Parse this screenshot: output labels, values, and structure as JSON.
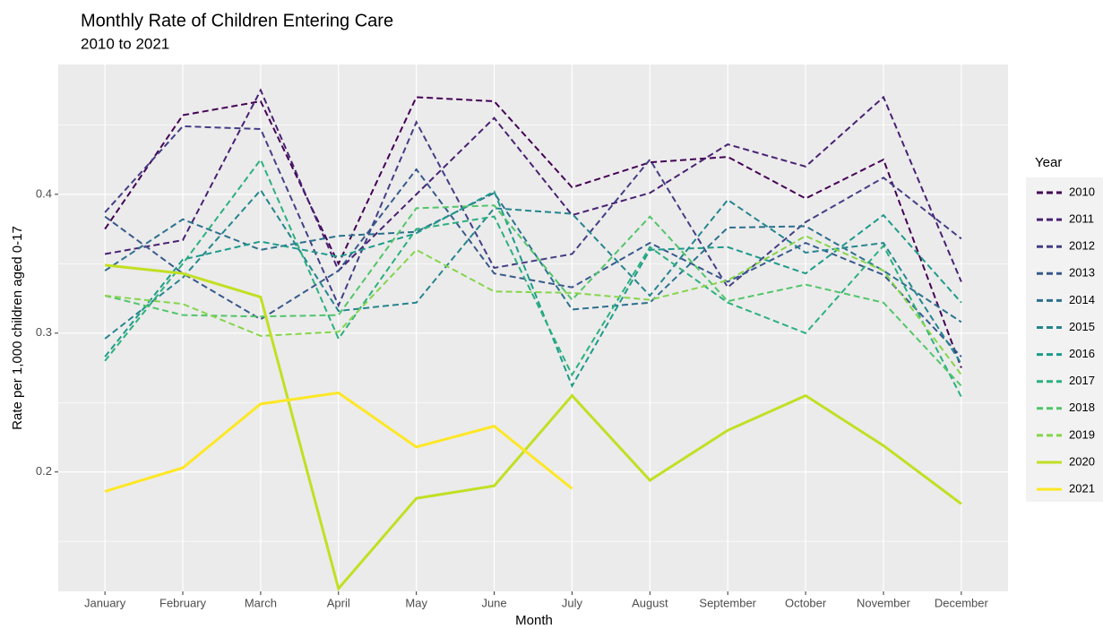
{
  "chart_data": {
    "type": "line",
    "title": "Monthly Rate of Children Entering Care",
    "subtitle": "2010 to 2021",
    "x_label": "Month",
    "y_label": "Rate per 1,000 children aged 0-17",
    "legend_title": "Year",
    "legend_position": "right",
    "grid": true,
    "categories": [
      "January",
      "February",
      "March",
      "April",
      "May",
      "June",
      "July",
      "August",
      "September",
      "October",
      "November",
      "December"
    ],
    "ylim": [
      0.114,
      0.4935
    ],
    "yticks": [
      0.2,
      0.3,
      0.4
    ],
    "series": [
      {
        "name": "2010",
        "color": "#440154",
        "linetype": "dashed",
        "values": [
          0.375,
          0.457,
          0.467,
          0.35,
          0.47,
          0.467,
          0.405,
          0.423,
          0.427,
          0.397,
          0.425,
          0.275
        ]
      },
      {
        "name": "2011",
        "color": "#482173",
        "linetype": "dashed",
        "values": [
          0.357,
          0.367,
          0.475,
          0.345,
          0.4,
          0.455,
          0.385,
          0.401,
          0.436,
          0.42,
          0.47,
          0.337
        ]
      },
      {
        "name": "2012",
        "color": "#433E85",
        "linetype": "dashed",
        "values": [
          0.387,
          0.449,
          0.447,
          0.32,
          0.452,
          0.347,
          0.357,
          0.425,
          0.333,
          0.38,
          0.412,
          0.368
        ]
      },
      {
        "name": "2013",
        "color": "#38598C",
        "linetype": "dashed",
        "values": [
          0.384,
          0.343,
          0.31,
          0.345,
          0.418,
          0.343,
          0.333,
          0.365,
          0.337,
          0.365,
          0.342,
          0.283
        ]
      },
      {
        "name": "2014",
        "color": "#2D708E",
        "linetype": "dashed",
        "values": [
          0.345,
          0.382,
          0.36,
          0.37,
          0.373,
          0.401,
          0.317,
          0.322,
          0.376,
          0.377,
          0.345,
          0.308
        ]
      },
      {
        "name": "2015",
        "color": "#25858E",
        "linetype": "dashed",
        "values": [
          0.296,
          0.34,
          0.403,
          0.316,
          0.322,
          0.39,
          0.386,
          0.327,
          0.396,
          0.358,
          0.365,
          0.278
        ]
      },
      {
        "name": "2016",
        "color": "#1E9B8A",
        "linetype": "dashed",
        "values": [
          0.283,
          0.353,
          0.366,
          0.355,
          0.372,
          0.402,
          0.262,
          0.36,
          0.362,
          0.343,
          0.385,
          0.322
        ]
      },
      {
        "name": "2017",
        "color": "#2BB07F",
        "linetype": "dashed",
        "values": [
          0.28,
          0.35,
          0.425,
          0.296,
          0.375,
          0.384,
          0.27,
          0.362,
          0.322,
          0.3,
          0.363,
          0.254
        ]
      },
      {
        "name": "2018",
        "color": "#51C56A",
        "linetype": "dashed",
        "values": [
          0.327,
          0.313,
          0.312,
          0.313,
          0.39,
          0.392,
          0.324,
          0.384,
          0.323,
          0.335,
          0.322,
          0.262
        ]
      },
      {
        "name": "2019",
        "color": "#85D54A",
        "linetype": "dashed",
        "values": [
          0.327,
          0.321,
          0.298,
          0.301,
          0.36,
          0.33,
          0.329,
          0.324,
          0.338,
          0.37,
          0.345,
          0.27
        ]
      },
      {
        "name": "2020",
        "color": "#C2DF23",
        "linetype": "solid",
        "values": [
          0.349,
          0.343,
          0.326,
          0.116,
          0.181,
          0.19,
          0.255,
          0.194,
          0.23,
          0.255,
          0.219,
          0.177
        ]
      },
      {
        "name": "2021",
        "color": "#FDE725",
        "linetype": "solid",
        "values": [
          0.186,
          0.203,
          0.249,
          0.257,
          0.218,
          0.233,
          0.188,
          null,
          null,
          null,
          null,
          null
        ]
      }
    ]
  }
}
